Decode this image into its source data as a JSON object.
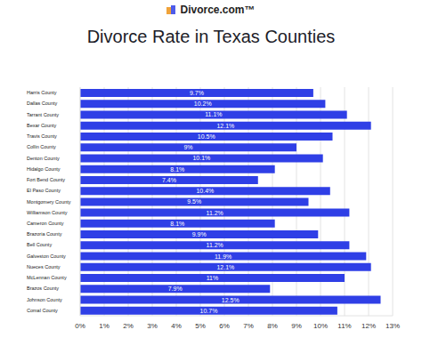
{
  "header": {
    "logo_text": "Divorce.com™"
  },
  "chart_data": {
    "type": "bar",
    "title": "Divorce Rate in Texas Counties",
    "orientation": "horizontal",
    "categories": [
      "Harris County",
      "Dallas County",
      "Tarrant County",
      "Bexar County",
      "Travis County",
      "Collin County",
      "Denton County",
      "Hidalgo County",
      "Fort Bend County",
      "El Paso County",
      "Montgomery County",
      "Williamson County",
      "Cameron County",
      "Brazoria County",
      "Bell County",
      "Galveston County",
      "Nueces County",
      "McLennan County",
      "Brazos County",
      "Johnson County",
      "Comal County"
    ],
    "values": [
      9.7,
      10.2,
      11.1,
      12.1,
      10.5,
      9,
      10.1,
      8.1,
      7.4,
      10.4,
      9.5,
      11.2,
      8.1,
      9.9,
      11.2,
      11.9,
      12.1,
      11,
      7.9,
      12.5,
      10.7
    ],
    "value_labels": [
      "9.7%",
      "10.2%",
      "11.1%",
      "12.1%",
      "10.5%",
      "9%",
      "10.1%",
      "8.1%",
      "7.4%",
      "10.4%",
      "9.5%",
      "11.2%",
      "8.1%",
      "9.9%",
      "11.2%",
      "11.9%",
      "12.1%",
      "11%",
      "7.9%",
      "12.5%",
      "10.7%"
    ],
    "data_labels": true,
    "color": "#2f3fe6",
    "xlim": [
      0,
      13
    ],
    "xticks": [
      {
        "value": 0,
        "label": "0%"
      },
      {
        "value": 1,
        "label": "1%"
      },
      {
        "value": 2,
        "label": "2%"
      },
      {
        "value": 3,
        "label": "3%"
      },
      {
        "value": 4,
        "label": "4%"
      },
      {
        "value": 5,
        "label": "5%"
      },
      {
        "value": 6,
        "label": "6%"
      },
      {
        "value": 7,
        "label": "7%"
      },
      {
        "value": 8,
        "label": "8%"
      },
      {
        "value": 9,
        "label": "9%"
      },
      {
        "value": 10,
        "label": "10%"
      },
      {
        "value": 11,
        "label": "11%"
      },
      {
        "value": 12,
        "label": "12%"
      },
      {
        "value": 13,
        "label": "13%"
      }
    ],
    "grid": true
  }
}
